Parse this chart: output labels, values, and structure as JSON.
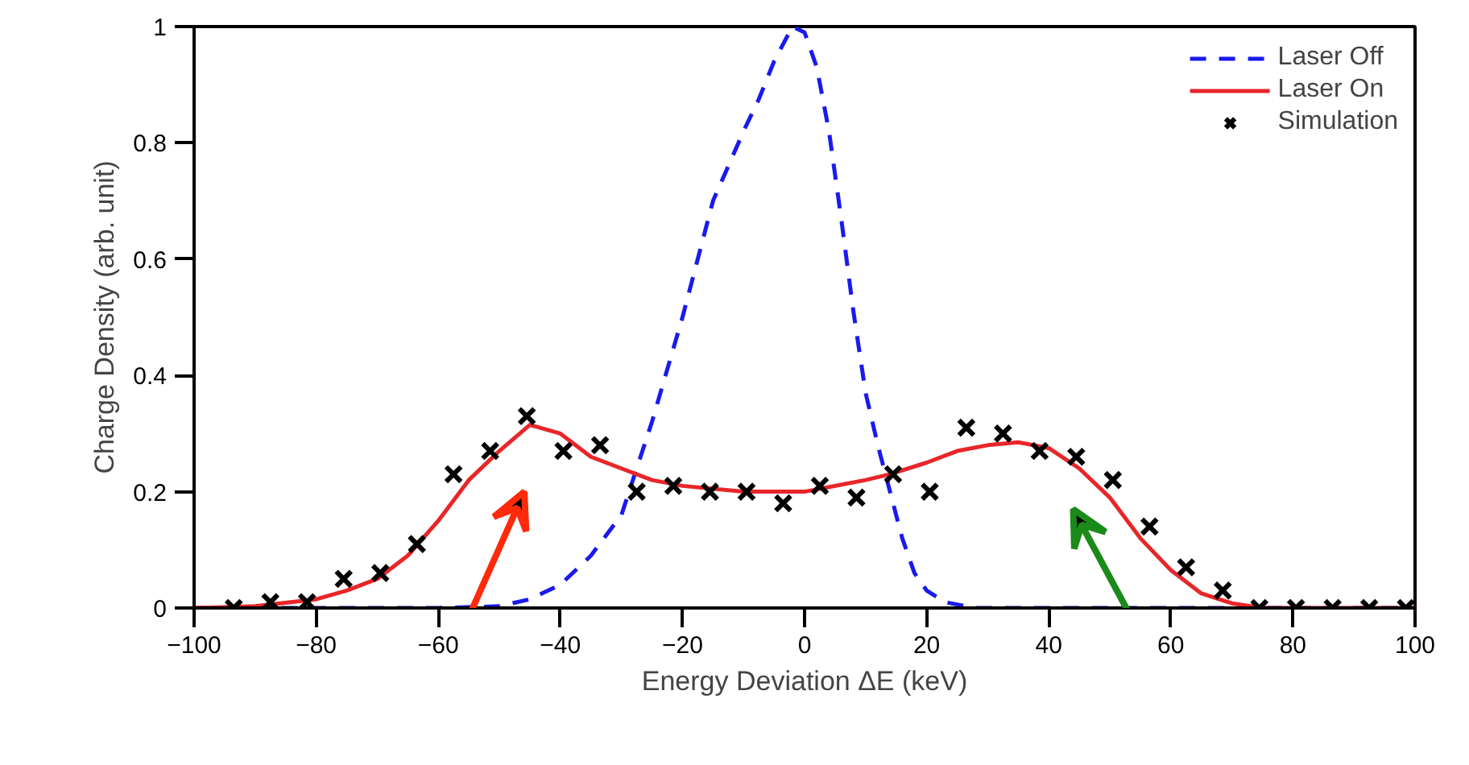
{
  "chart_data": {
    "type": "line",
    "xlabel": "Energy Deviation ΔE (keV)",
    "ylabel": "Charge Density (arb. unit)",
    "xlim": [
      -100,
      100
    ],
    "ylim": [
      0,
      1
    ],
    "xticks": [
      {
        "value": -100,
        "label": "−100"
      },
      {
        "value": -80,
        "label": "−80"
      },
      {
        "value": -60,
        "label": "−60"
      },
      {
        "value": -40,
        "label": "−40"
      },
      {
        "value": -20,
        "label": "−20"
      },
      0,
      20,
      40,
      60,
      80,
      100
    ],
    "yticks": [
      0,
      0.2,
      0.4,
      0.6,
      0.8,
      1
    ],
    "grid": false,
    "legend": "top right",
    "series": [
      {
        "name": "Laser Off",
        "type": "line",
        "line_style": "dashed",
        "color": "#1a1aee",
        "x": [
          -100,
          -60,
          -50,
          -45,
          -40,
          -35,
          -30,
          -25,
          -20,
          -15,
          -10,
          -7.5,
          -5,
          -2,
          0,
          2,
          4,
          6,
          8,
          10,
          12,
          14,
          16,
          18,
          20,
          23,
          28,
          40,
          100
        ],
        "values": [
          0,
          0,
          0.003,
          0.015,
          0.04,
          0.09,
          0.16,
          0.32,
          0.5,
          0.7,
          0.82,
          0.875,
          0.94,
          1.0,
          0.99,
          0.93,
          0.82,
          0.67,
          0.51,
          0.37,
          0.28,
          0.2,
          0.12,
          0.06,
          0.03,
          0.01,
          0,
          0,
          0
        ]
      },
      {
        "name": "Laser On",
        "type": "line",
        "line_style": "solid",
        "color": "#e8262a",
        "x": [
          -100,
          -90,
          -80,
          -75,
          -70,
          -65,
          -60,
          -55,
          -50,
          -45,
          -40,
          -35,
          -30,
          -25,
          -20,
          -10,
          0,
          10,
          14,
          20,
          25,
          30,
          35,
          40,
          45,
          50,
          55,
          60,
          65,
          70,
          75,
          100
        ],
        "values": [
          0,
          0.003,
          0.015,
          0.03,
          0.05,
          0.09,
          0.15,
          0.22,
          0.27,
          0.315,
          0.3,
          0.26,
          0.24,
          0.22,
          0.21,
          0.2,
          0.2,
          0.22,
          0.23,
          0.25,
          0.27,
          0.28,
          0.285,
          0.275,
          0.24,
          0.19,
          0.12,
          0.065,
          0.025,
          0.008,
          0,
          0
        ]
      },
      {
        "name": "Simulation",
        "type": "scatter",
        "marker": "cross",
        "color": "#000000",
        "x": [
          -93.5,
          -87.5,
          -81.5,
          -75.5,
          -69.5,
          -63.5,
          -57.5,
          -51.5,
          -45.5,
          -39.5,
          -33.5,
          -27.5,
          -21.5,
          -15.5,
          -9.5,
          -3.5,
          2.5,
          8.5,
          14.5,
          20.5,
          26.5,
          32.5,
          38.5,
          44.5,
          50.5,
          56.5,
          62.5,
          68.5,
          74.5,
          80.5,
          86.5,
          92.5,
          98.5
        ],
        "values": [
          0,
          0.01,
          0.01,
          0.05,
          0.06,
          0.11,
          0.23,
          0.27,
          0.33,
          0.27,
          0.28,
          0.2,
          0.21,
          0.2,
          0.2,
          0.18,
          0.21,
          0.19,
          0.23,
          0.2,
          0.31,
          0.3,
          0.27,
          0.26,
          0.22,
          0.14,
          0.07,
          0.03,
          0,
          0,
          0,
          0,
          0
        ]
      }
    ]
  }
}
